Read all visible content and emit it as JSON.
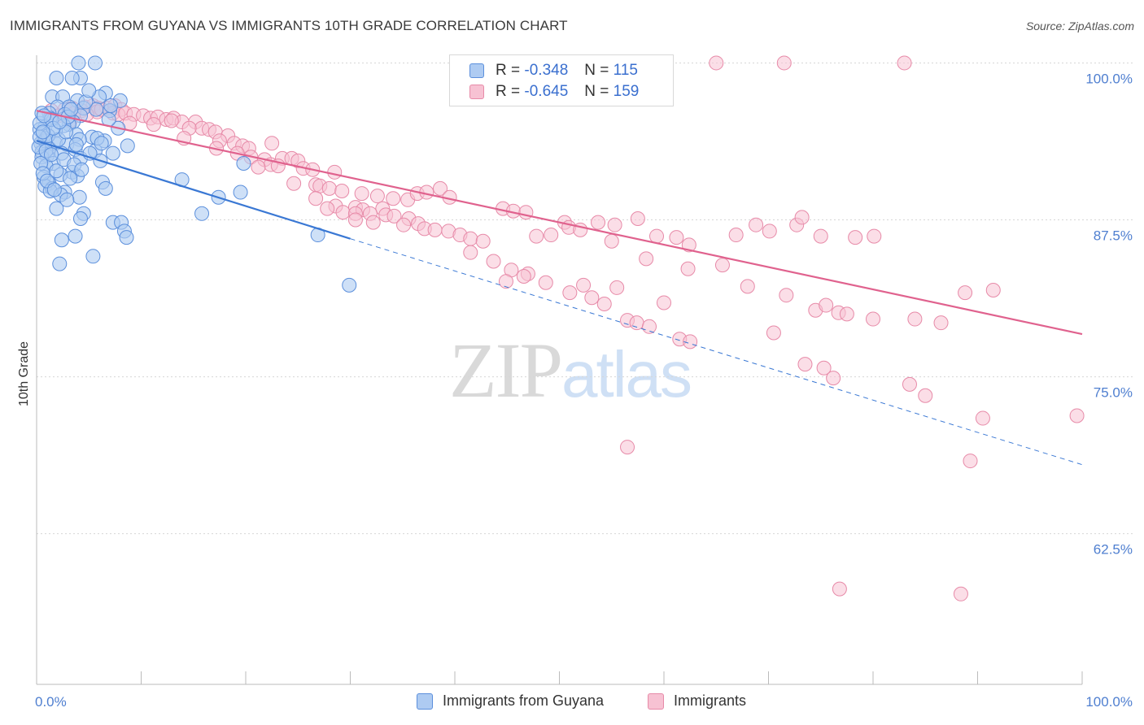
{
  "title": "IMMIGRANTS FROM GUYANA VS IMMIGRANTS 10TH GRADE CORRELATION CHART",
  "source": "Source: ZipAtlas.com",
  "watermark": {
    "zip": "ZIP",
    "atlas": "atlas"
  },
  "legend": {
    "rows": [
      {
        "r_label": "R =",
        "r_value": "-0.348",
        "n_label": "N =",
        "n_value": "115"
      },
      {
        "r_label": "R =",
        "r_value": "-0.645",
        "n_label": "N =",
        "n_value": "159"
      }
    ]
  },
  "bottom_legend": {
    "series1": "Immigrants from Guyana",
    "series2": "Immigrants"
  },
  "colors": {
    "series1_fill": "#aecbf2",
    "series1_stroke": "#5b8fdc",
    "series1_line": "#3a78d4",
    "series2_fill": "#f7c2d3",
    "series2_stroke": "#e78aa8",
    "series2_line": "#e0628e",
    "axis_text": "#4f7fd0",
    "grid": "#d6d6d6"
  },
  "chart_data": {
    "type": "scatter",
    "title": "IMMIGRANTS FROM GUYANA VS IMMIGRANTS 10TH GRADE CORRELATION CHART",
    "xlabel": "",
    "ylabel": "10th Grade",
    "xlim": [
      0,
      100
    ],
    "ylim": [
      50.5,
      101
    ],
    "x_tick_labels": [
      "0.0%",
      "100.0%"
    ],
    "y_ticks": [
      62.5,
      75.0,
      87.5,
      100.0
    ],
    "y_tick_labels": [
      "62.5%",
      "75.0%",
      "87.5%",
      "100.0%"
    ],
    "grid": "horizontal dashed",
    "legend_position": "top-center",
    "series": [
      {
        "name": "Immigrants from Guyana",
        "r": -0.348,
        "n": 115,
        "trend": {
          "x": [
            0,
            30
          ],
          "y": [
            93.8,
            86.0
          ],
          "dashed_to": [
            100,
            68.0
          ]
        },
        "points": [
          [
            4,
            100
          ],
          [
            5.6,
            100
          ],
          [
            4.2,
            98.8
          ],
          [
            1.9,
            98.8
          ],
          [
            3.4,
            98.8
          ],
          [
            6.6,
            97.6
          ],
          [
            1.5,
            97.3
          ],
          [
            2.5,
            97.3
          ],
          [
            6,
            97.3
          ],
          [
            3.9,
            97
          ],
          [
            8,
            97
          ],
          [
            2,
            96.5
          ],
          [
            3.1,
            96.5
          ],
          [
            4.5,
            96.4
          ],
          [
            5.7,
            96.3
          ],
          [
            7,
            96.2
          ],
          [
            1.2,
            96
          ],
          [
            2.7,
            95.9
          ],
          [
            4.2,
            95.8
          ],
          [
            1.3,
            95.6
          ],
          [
            3.5,
            95.3
          ],
          [
            3.1,
            95.1
          ],
          [
            2.6,
            95
          ],
          [
            0.8,
            94.9
          ],
          [
            7.8,
            94.8
          ],
          [
            0.3,
            94.7
          ],
          [
            1.8,
            94.6
          ],
          [
            0.6,
            94.4
          ],
          [
            3.8,
            94.3
          ],
          [
            5.3,
            94.1
          ],
          [
            0.9,
            94
          ],
          [
            4.1,
            93.9
          ],
          [
            6.5,
            93.8
          ],
          [
            0.4,
            93.6
          ],
          [
            1.8,
            93.6
          ],
          [
            2.9,
            93.5
          ],
          [
            8.7,
            93.4
          ],
          [
            1.2,
            93.2
          ],
          [
            3.7,
            93.1
          ],
          [
            5.6,
            93
          ],
          [
            0.5,
            92.9
          ],
          [
            2.4,
            92.8
          ],
          [
            7.3,
            92.8
          ],
          [
            1,
            92.6
          ],
          [
            0.5,
            92.5
          ],
          [
            4.2,
            92.4
          ],
          [
            6.1,
            92.2
          ],
          [
            1.6,
            92
          ],
          [
            0.9,
            91.8
          ],
          [
            3.4,
            91.3
          ],
          [
            2.3,
            91.1
          ],
          [
            3.9,
            91
          ],
          [
            0.7,
            90.9
          ],
          [
            3.2,
            90.8
          ],
          [
            6.3,
            90.5
          ],
          [
            1.2,
            90.4
          ],
          [
            0.8,
            90.2
          ],
          [
            1.5,
            90
          ],
          [
            6.6,
            90
          ],
          [
            1.3,
            89.8
          ],
          [
            2.7,
            89.7
          ],
          [
            2.3,
            89.5
          ],
          [
            4.1,
            89.3
          ],
          [
            1.9,
            88.4
          ],
          [
            4.5,
            88
          ],
          [
            4.2,
            87.6
          ],
          [
            7.3,
            87.3
          ],
          [
            8.1,
            87.3
          ],
          [
            8.4,
            86.6
          ],
          [
            8.6,
            86.1
          ],
          [
            3.7,
            86.2
          ],
          [
            2.4,
            85.9
          ],
          [
            5.4,
            84.6
          ],
          [
            2.2,
            84
          ],
          [
            13.9,
            90.7
          ],
          [
            17.4,
            89.3
          ],
          [
            19.5,
            89.7
          ],
          [
            15.8,
            88
          ],
          [
            19.8,
            92
          ],
          [
            26.9,
            86.3
          ],
          [
            29.9,
            82.3
          ],
          [
            0.3,
            95.2
          ],
          [
            0.5,
            96
          ],
          [
            0.8,
            93.8
          ],
          [
            1.1,
            94.2
          ],
          [
            1.4,
            95.5
          ],
          [
            0.4,
            92
          ],
          [
            0.6,
            91.2
          ],
          [
            1.9,
            91.4
          ],
          [
            2.1,
            93.9
          ],
          [
            2.8,
            94.5
          ],
          [
            3,
            95.7
          ],
          [
            3.3,
            96.3
          ],
          [
            4.7,
            96.9
          ],
          [
            5,
            97.8
          ],
          [
            5.8,
            94
          ],
          [
            6.9,
            95.5
          ],
          [
            7.1,
            96.6
          ],
          [
            0.2,
            93.3
          ],
          [
            0.7,
            95.8
          ],
          [
            1.6,
            94.8
          ],
          [
            2.6,
            92.3
          ],
          [
            3.6,
            91.9
          ],
          [
            1,
            90.6
          ],
          [
            1.7,
            89.9
          ],
          [
            2.9,
            89.1
          ],
          [
            4.3,
            91.5
          ],
          [
            5.1,
            92.8
          ],
          [
            6.2,
            93.6
          ],
          [
            0.3,
            94.1
          ],
          [
            0.9,
            93
          ],
          [
            2.2,
            95.3
          ],
          [
            1.4,
            92.7
          ],
          [
            3.8,
            93.5
          ],
          [
            0.6,
            94.5
          ]
        ]
      },
      {
        "name": "Immigrants",
        "r": -0.645,
        "n": 159,
        "trend": {
          "x": [
            0,
            100
          ],
          "y": [
            96.2,
            78.4
          ]
        },
        "points": [
          [
            65,
            100
          ],
          [
            71.5,
            100
          ],
          [
            83,
            100
          ],
          [
            2.7,
            96.3
          ],
          [
            3.4,
            96.4
          ],
          [
            4.6,
            96.5
          ],
          [
            5.4,
            96.6
          ],
          [
            5.9,
            96.4
          ],
          [
            6.7,
            96.4
          ],
          [
            7.5,
            96.6
          ],
          [
            8.1,
            96.3
          ],
          [
            3.6,
            96
          ],
          [
            4.3,
            96.2
          ],
          [
            5.8,
            96.1
          ],
          [
            6.2,
            96.3
          ],
          [
            7.3,
            96
          ],
          [
            7.8,
            95.9
          ],
          [
            8.5,
            96
          ],
          [
            9.3,
            95.9
          ],
          [
            10.2,
            95.8
          ],
          [
            10.9,
            95.6
          ],
          [
            11.6,
            95.7
          ],
          [
            12.4,
            95.5
          ],
          [
            13.1,
            95.6
          ],
          [
            13.9,
            95.3
          ],
          [
            1.4,
            96.2
          ],
          [
            2.1,
            95.8
          ],
          [
            3.2,
            95.4
          ],
          [
            4.8,
            95.9
          ],
          [
            8.9,
            95.2
          ],
          [
            11.2,
            95.1
          ],
          [
            12.9,
            95.4
          ],
          [
            15.2,
            95.3
          ],
          [
            15.8,
            94.8
          ],
          [
            16.5,
            94.7
          ],
          [
            17.1,
            94.5
          ],
          [
            18.3,
            94.2
          ],
          [
            14.6,
            94.8
          ],
          [
            14.1,
            94
          ],
          [
            17.5,
            93.8
          ],
          [
            18.9,
            93.6
          ],
          [
            19.7,
            93.4
          ],
          [
            20.3,
            93.2
          ],
          [
            22.5,
            93.6
          ],
          [
            17.2,
            93.2
          ],
          [
            19.2,
            92.8
          ],
          [
            20.5,
            92.5
          ],
          [
            21.8,
            92.3
          ],
          [
            22.4,
            91.9
          ],
          [
            23.5,
            92.4
          ],
          [
            24.4,
            92.4
          ],
          [
            25,
            92.2
          ],
          [
            23.1,
            91.8
          ],
          [
            21.2,
            91.7
          ],
          [
            25.5,
            91.6
          ],
          [
            26.4,
            91.5
          ],
          [
            28.5,
            91.3
          ],
          [
            24.6,
            90.4
          ],
          [
            26.7,
            90.3
          ],
          [
            27.1,
            90.2
          ],
          [
            28,
            90
          ],
          [
            29.2,
            89.8
          ],
          [
            31.1,
            89.6
          ],
          [
            32.6,
            89.4
          ],
          [
            34.1,
            89.2
          ],
          [
            35.5,
            89.1
          ],
          [
            36.4,
            89.6
          ],
          [
            37.3,
            89.7
          ],
          [
            38.6,
            90
          ],
          [
            39.5,
            89.3
          ],
          [
            26.7,
            89.2
          ],
          [
            28.6,
            88.6
          ],
          [
            27.8,
            88.4
          ],
          [
            30.5,
            88.5
          ],
          [
            31.2,
            88.3
          ],
          [
            33.1,
            88.4
          ],
          [
            29.3,
            88.1
          ],
          [
            30.5,
            88
          ],
          [
            31.9,
            88
          ],
          [
            33.4,
            87.9
          ],
          [
            34.2,
            87.8
          ],
          [
            35.6,
            87.6
          ],
          [
            30.5,
            87.5
          ],
          [
            32.2,
            87.3
          ],
          [
            35.1,
            87.1
          ],
          [
            36.5,
            87.2
          ],
          [
            37.1,
            86.8
          ],
          [
            38.1,
            86.7
          ],
          [
            39.4,
            86.6
          ],
          [
            40.5,
            86.3
          ],
          [
            41.5,
            86
          ],
          [
            42.7,
            85.8
          ],
          [
            44.6,
            88.4
          ],
          [
            45.6,
            88.2
          ],
          [
            46.8,
            88.1
          ],
          [
            47.8,
            86.2
          ],
          [
            49.2,
            86.3
          ],
          [
            50.5,
            87.3
          ],
          [
            50.9,
            86.9
          ],
          [
            52,
            86.7
          ],
          [
            53.7,
            87.3
          ],
          [
            55.3,
            87.1
          ],
          [
            55,
            85.8
          ],
          [
            57.5,
            87.6
          ],
          [
            59.3,
            86.2
          ],
          [
            61.2,
            86.1
          ],
          [
            62.4,
            85.5
          ],
          [
            66.9,
            86.3
          ],
          [
            68.8,
            87.1
          ],
          [
            70.1,
            86.6
          ],
          [
            72.7,
            87.1
          ],
          [
            73.2,
            87.7
          ],
          [
            75,
            86.2
          ],
          [
            78.3,
            86.1
          ],
          [
            80.1,
            86.2
          ],
          [
            41.5,
            84.9
          ],
          [
            43.7,
            84.2
          ],
          [
            45.4,
            83.5
          ],
          [
            47,
            83.2
          ],
          [
            48.7,
            82.5
          ],
          [
            52.3,
            82.3
          ],
          [
            55.5,
            82.1
          ],
          [
            58.3,
            84.4
          ],
          [
            62.3,
            83.6
          ],
          [
            65.6,
            83.9
          ],
          [
            68,
            82.2
          ],
          [
            71.7,
            81.5
          ],
          [
            74.5,
            80.3
          ],
          [
            75.5,
            80.7
          ],
          [
            76.7,
            80.1
          ],
          [
            77.5,
            80
          ],
          [
            80,
            79.6
          ],
          [
            84,
            79.6
          ],
          [
            86.5,
            79.3
          ],
          [
            88.8,
            81.7
          ],
          [
            91.5,
            81.9
          ],
          [
            44.9,
            82.6
          ],
          [
            46.6,
            83
          ],
          [
            51,
            81.7
          ],
          [
            53.1,
            81.3
          ],
          [
            54.3,
            80.8
          ],
          [
            56.5,
            79.5
          ],
          [
            57.4,
            79.3
          ],
          [
            58.6,
            79
          ],
          [
            61.5,
            78
          ],
          [
            62.5,
            77.8
          ],
          [
            60,
            80.9
          ],
          [
            70.5,
            78.5
          ],
          [
            73.5,
            76
          ],
          [
            75.3,
            75.7
          ],
          [
            76.2,
            74.9
          ],
          [
            83.5,
            74.4
          ],
          [
            85,
            73.5
          ],
          [
            90.5,
            71.7
          ],
          [
            56.5,
            69.4
          ],
          [
            89.3,
            68.3
          ],
          [
            99.5,
            71.9
          ],
          [
            76.8,
            58.1
          ],
          [
            88.4,
            57.7
          ]
        ]
      }
    ]
  }
}
